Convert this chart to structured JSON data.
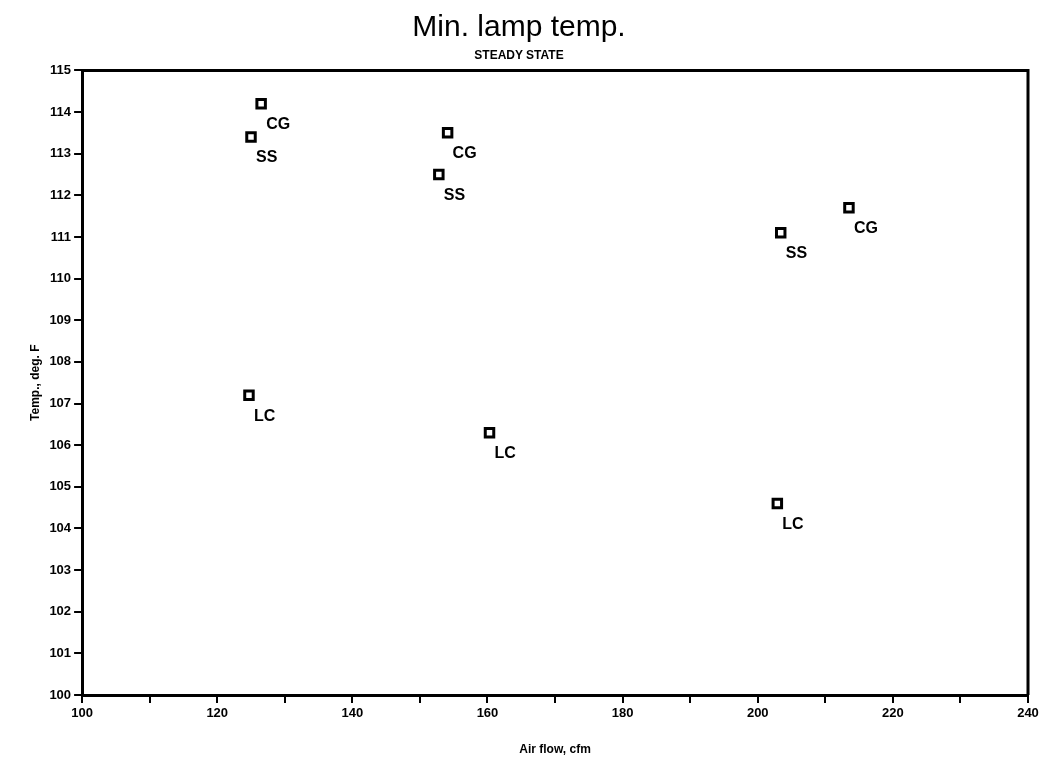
{
  "chart_data": {
    "type": "scatter",
    "title": "Min. lamp temp.",
    "subtitle": "STEADY STATE",
    "xlabel": "Air flow, cfm",
    "ylabel": "Temp., deg. F",
    "xlim": [
      100,
      240
    ],
    "ylim": [
      100,
      115
    ],
    "xticks": [
      100,
      {
        "value": 110,
        "label": null
      },
      120,
      {
        "value": 130,
        "label": null
      },
      140,
      {
        "value": 150,
        "label": null
      },
      160,
      {
        "value": 170,
        "label": null
      },
      180,
      {
        "value": 190,
        "label": null
      },
      200,
      {
        "value": 210,
        "label": null
      },
      220,
      {
        "value": 230,
        "label": null
      },
      240
    ],
    "yticks": [
      100,
      101,
      102,
      103,
      104,
      105,
      106,
      107,
      108,
      109,
      110,
      111,
      112,
      113,
      114,
      115
    ],
    "grid": false,
    "legend": false,
    "marker": "square",
    "series": [
      {
        "name": "CG",
        "color": "#000000",
        "x": [
          126.5,
          154.1,
          213.5
        ],
        "values": [
          114.2,
          113.5,
          111.7
        ]
      },
      {
        "name": "SS",
        "color": "#000000",
        "x": [
          125.0,
          152.8,
          203.4
        ],
        "values": [
          113.4,
          112.5,
          111.1
        ]
      },
      {
        "name": "LC",
        "color": "#000000",
        "x": [
          124.7,
          160.3,
          202.9
        ],
        "values": [
          107.2,
          106.3,
          104.6
        ]
      }
    ]
  }
}
